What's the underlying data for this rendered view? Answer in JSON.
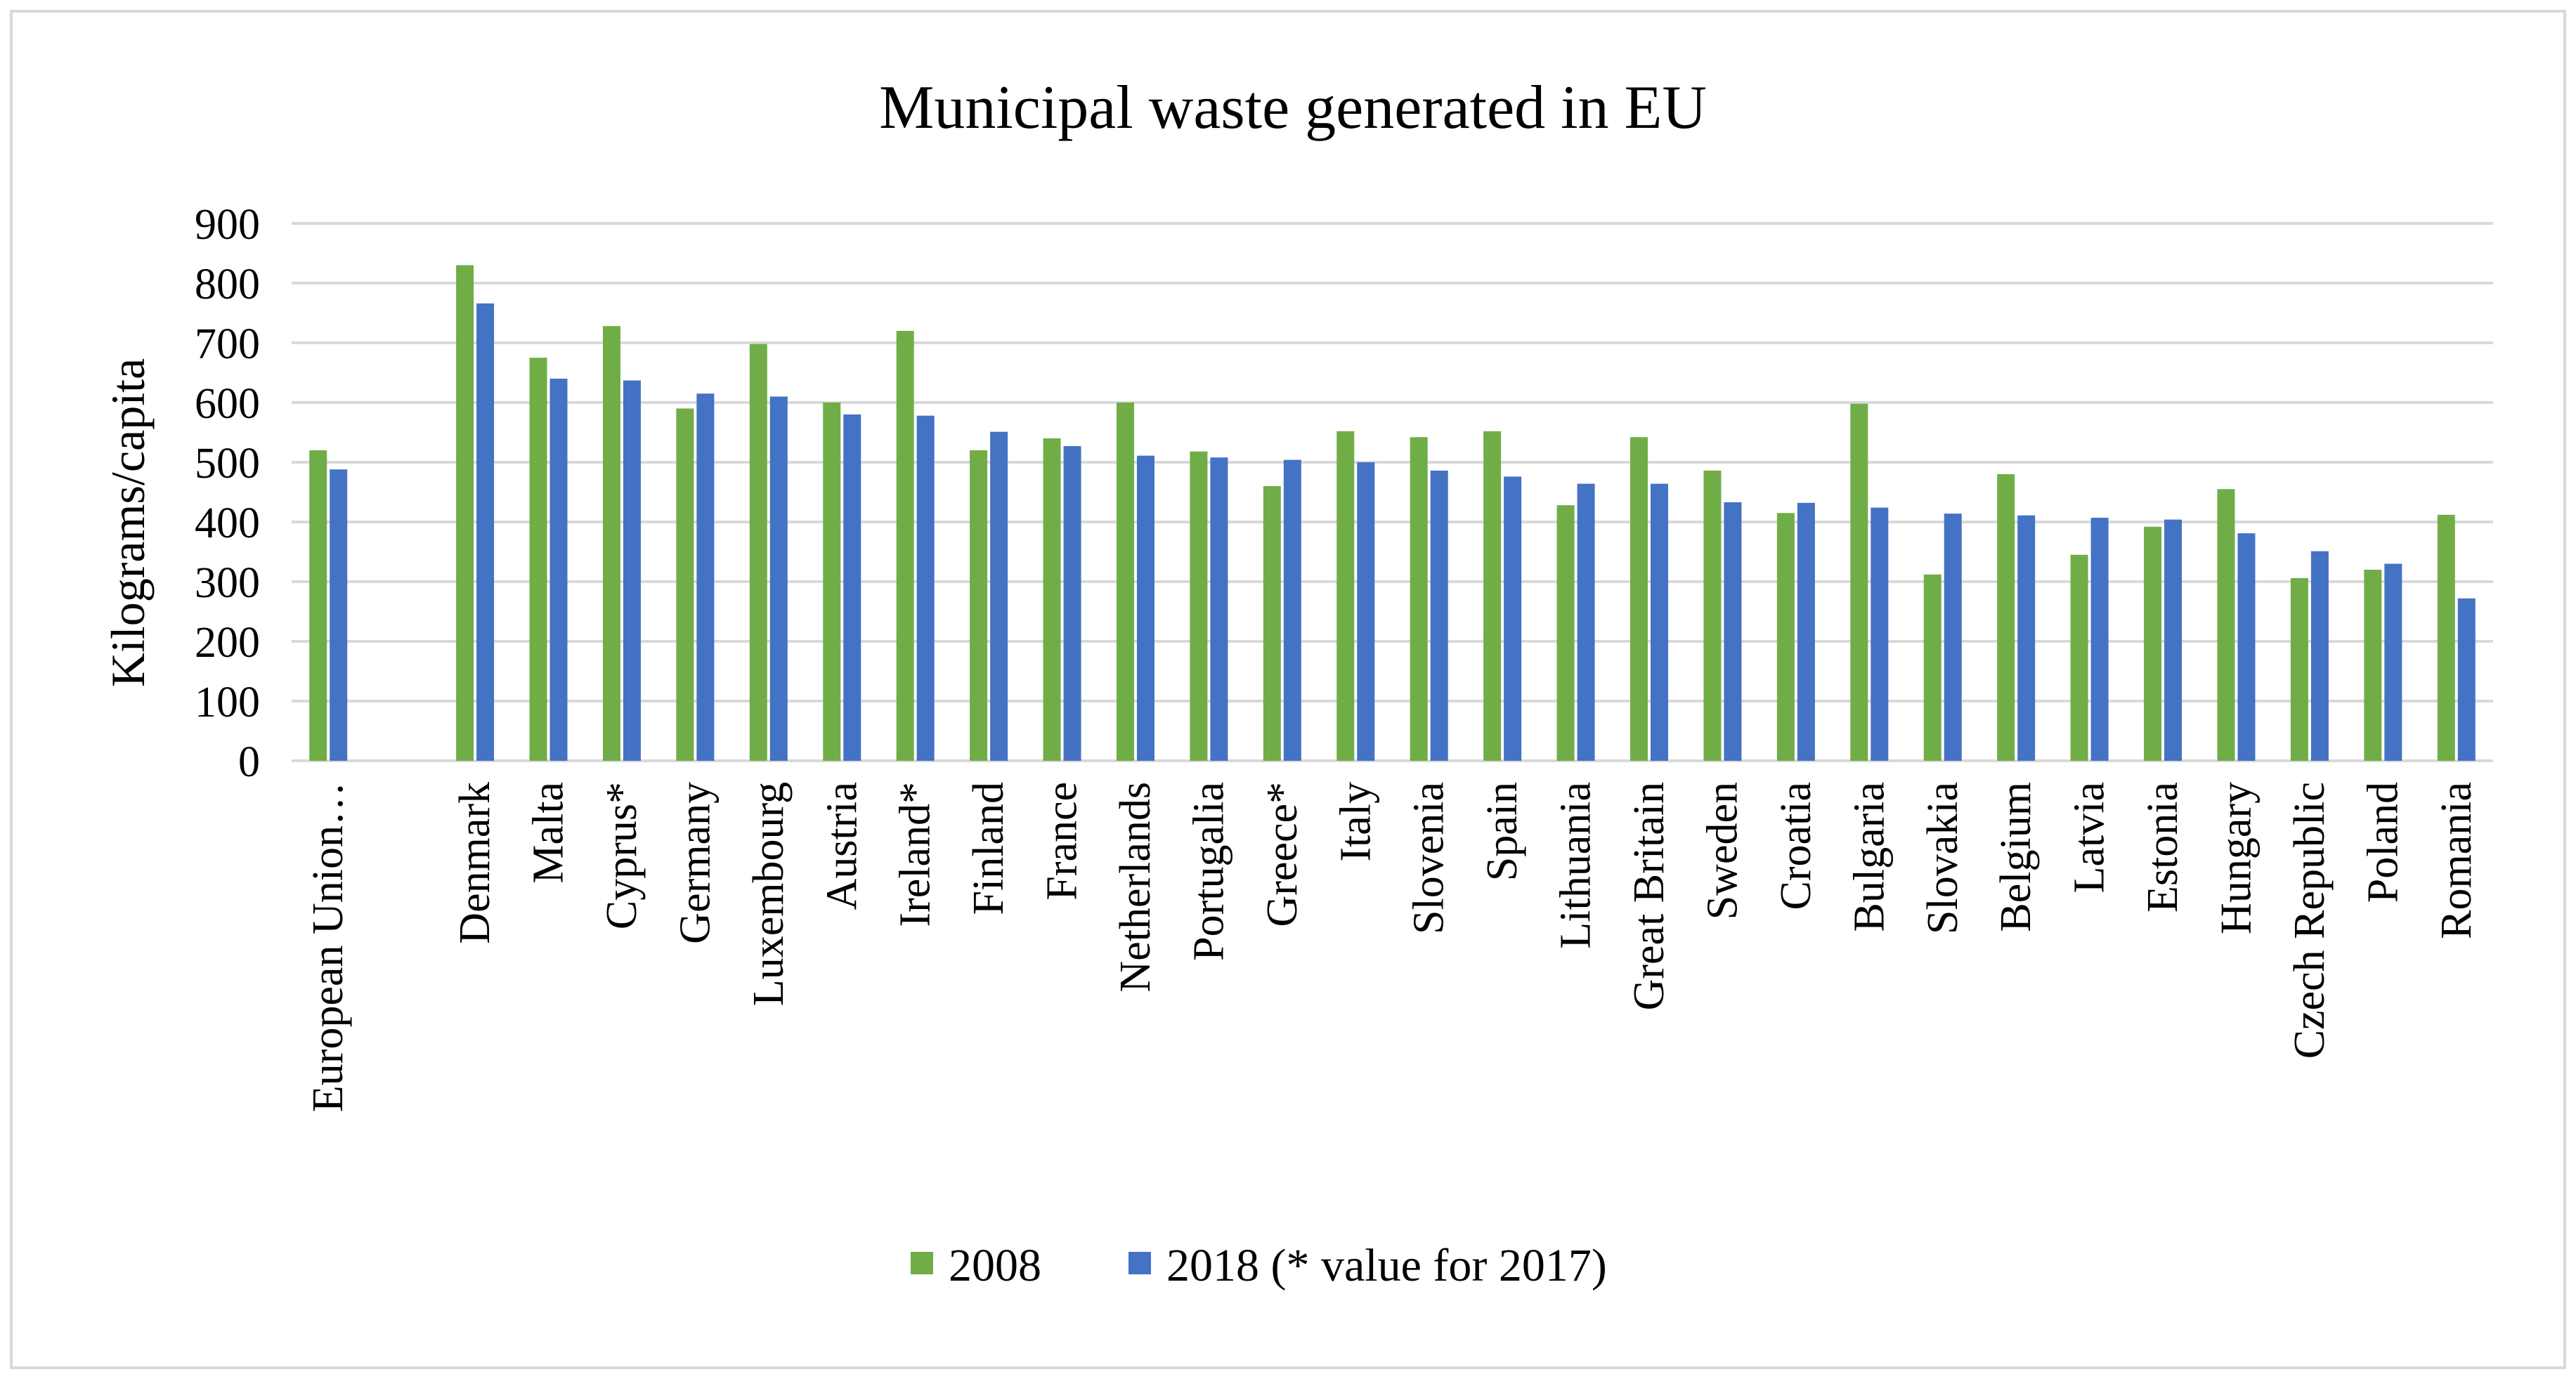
{
  "chart_data": {
    "type": "bar",
    "title": "Municipal waste generated in EU",
    "xlabel": "",
    "ylabel": "Kilograms/capita",
    "ylim": [
      0,
      900
    ],
    "yticks": [
      0,
      100,
      200,
      300,
      400,
      500,
      600,
      700,
      800,
      900
    ],
    "grid": true,
    "legend_position": "bottom",
    "categories": [
      "European Union…",
      "",
      "Denmark",
      "Malta",
      "Cyprus*",
      "Germany",
      "Luxembourg",
      "Austria",
      "Ireland*",
      "Finland",
      "France",
      "Netherlands",
      "Portugalia",
      "Greece*",
      "Italy",
      "Slovenia",
      "Spain",
      "Lithuania",
      "Great Britain",
      "Sweden",
      "Croatia",
      "Bulgaria",
      "Slovakia",
      "Belgium",
      "Latvia",
      "Estonia",
      "Hungary",
      "Czech Republic",
      "Poland",
      "Romania"
    ],
    "series": [
      {
        "name": "2008",
        "color": "#70ad47",
        "values": [
          520,
          null,
          830,
          675,
          728,
          590,
          698,
          600,
          720,
          520,
          540,
          600,
          518,
          460,
          552,
          542,
          552,
          428,
          542,
          486,
          415,
          598,
          312,
          480,
          345,
          392,
          455,
          306,
          320,
          412
        ]
      },
      {
        "name": "2018 (* value for 2017)",
        "color": "#4472c4",
        "values": [
          488,
          null,
          766,
          640,
          637,
          615,
          610,
          580,
          578,
          551,
          527,
          511,
          508,
          504,
          500,
          486,
          476,
          464,
          464,
          433,
          432,
          424,
          414,
          411,
          407,
          404,
          381,
          351,
          330,
          272
        ]
      }
    ]
  }
}
